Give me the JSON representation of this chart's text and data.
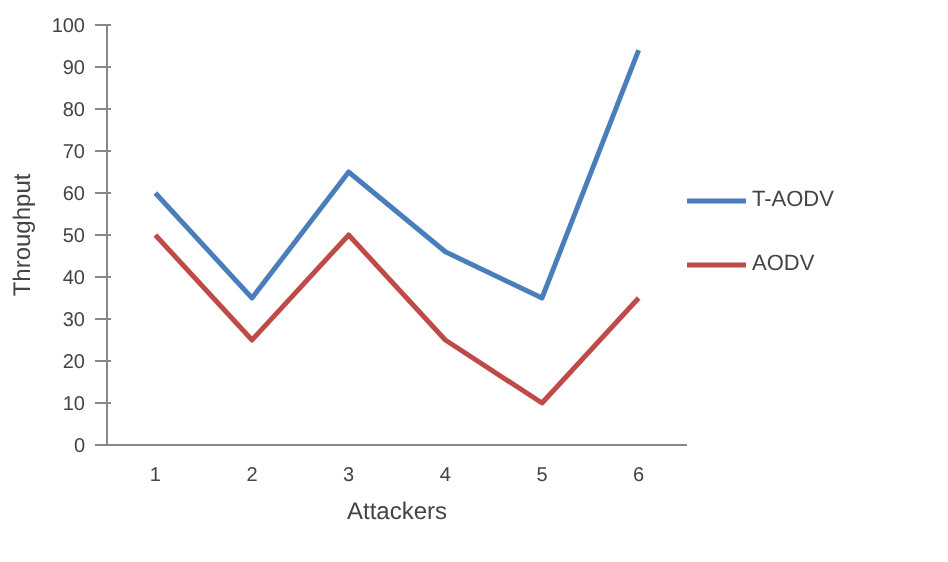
{
  "chart_data": {
    "type": "line",
    "xlabel": "Attackers",
    "ylabel": "Throughput",
    "categories": [
      "1",
      "2",
      "3",
      "4",
      "5",
      "6"
    ],
    "series": [
      {
        "name": "T-AODV",
        "color": "#4a7ebb",
        "values": [
          60,
          35,
          65,
          46,
          35,
          94
        ]
      },
      {
        "name": "AODV",
        "color": "#be4b48",
        "values": [
          50,
          25,
          50,
          25,
          10,
          35
        ]
      }
    ],
    "ylim": [
      0,
      100
    ],
    "yticks": [
      0,
      10,
      20,
      30,
      40,
      50,
      60,
      70,
      80,
      90,
      100
    ],
    "grid": false,
    "legend": "right",
    "marker": "none",
    "line_style": "solid"
  }
}
